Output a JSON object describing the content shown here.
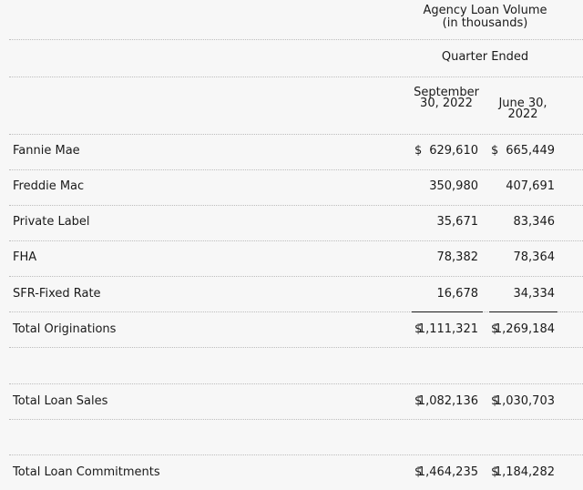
{
  "header": {
    "title": "Agency Loan Volume (in thousands)",
    "period": "Quarter Ended",
    "col1": "September 30, 2022",
    "col2": "June 30, 2022"
  },
  "rows": [
    {
      "label": "Fannie Mae",
      "c1_sym": "$",
      "c1": "629,610",
      "c2_sym": "$",
      "c2": "665,449"
    },
    {
      "label": "Freddie Mac",
      "c1": "350,980",
      "c2": "407,691"
    },
    {
      "label": "Private Label",
      "c1": "35,671",
      "c2": "83,346"
    },
    {
      "label": "FHA",
      "c1": "78,382",
      "c2": "78,364"
    },
    {
      "label": "SFR-Fixed Rate",
      "c1": "16,678",
      "c2": "34,334"
    },
    {
      "label": "Total Originations",
      "c1_sym": "$",
      "c1": "1,111,321",
      "c2_sym": "$",
      "c2": "1,269,184"
    },
    {
      "label": "Total Loan Sales",
      "c1_sym": "$",
      "c1": "1,082,136",
      "c2_sym": "$",
      "c2": "1,030,703"
    },
    {
      "label": "Total Loan Commitments",
      "c1_sym": "$",
      "c1": "1,464,235",
      "c2_sym": "$",
      "c2": "1,184,282"
    }
  ]
}
